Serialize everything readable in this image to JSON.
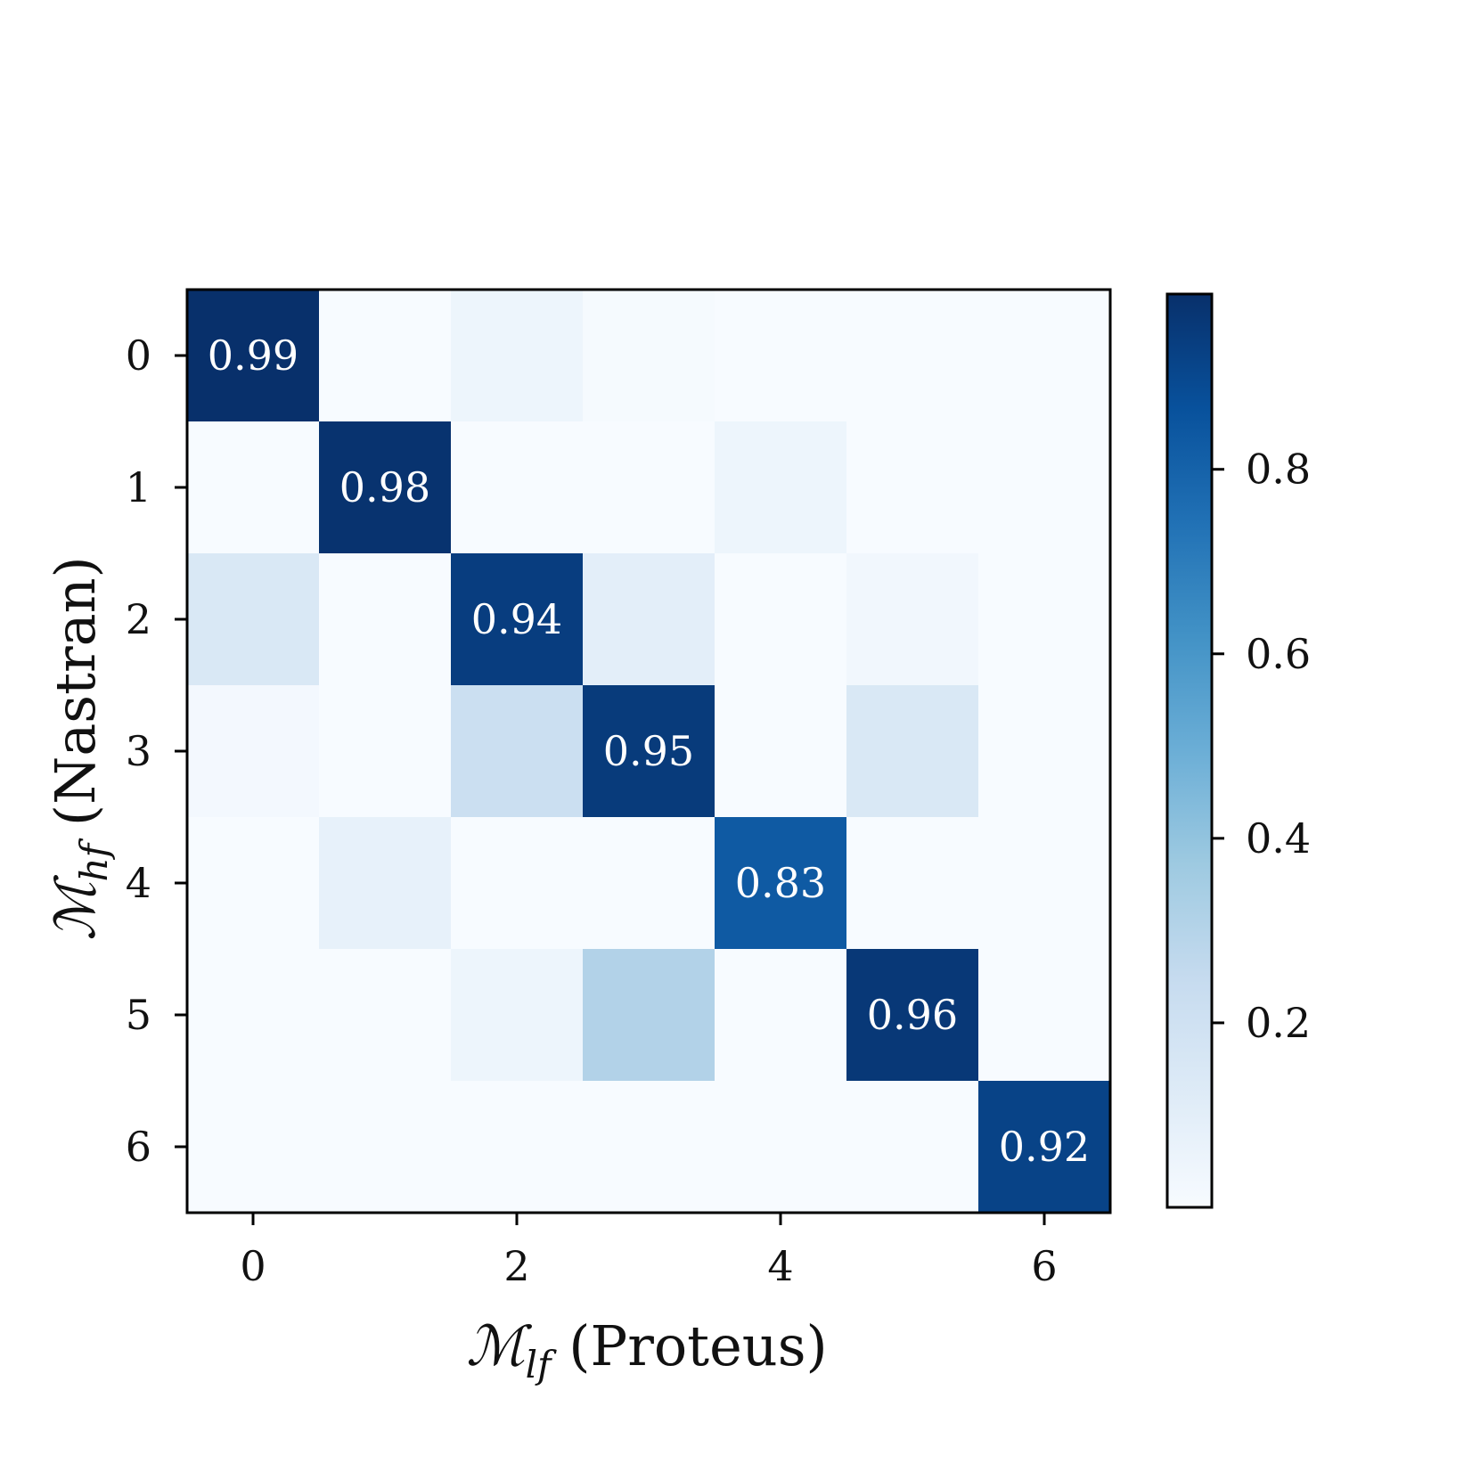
{
  "chart_data": {
    "type": "heatmap",
    "colormap": "Blues",
    "title": "",
    "xlabel": {
      "math": "ℳ",
      "sub": "lf",
      "text": " (Proteus)"
    },
    "ylabel": {
      "math": "ℳ",
      "sub": "hf",
      "text": " (Nastran)"
    },
    "x_ticks": [
      "0",
      "2",
      "4",
      "6"
    ],
    "y_ticks": [
      "0",
      "1",
      "2",
      "3",
      "4",
      "5",
      "6"
    ],
    "colorbar": {
      "ticks": [
        "0.2",
        "0.4",
        "0.6",
        "0.8"
      ],
      "tick_values": [
        0.2,
        0.4,
        0.6,
        0.8
      ],
      "range": [
        0.0,
        0.99
      ]
    },
    "matrix": [
      [
        0.99,
        0.0,
        0.05,
        0.01,
        0.0,
        0.0,
        0.0
      ],
      [
        0.0,
        0.98,
        0.0,
        0.0,
        0.05,
        0.0,
        0.0
      ],
      [
        0.15,
        0.0,
        0.94,
        0.1,
        0.0,
        0.03,
        0.0
      ],
      [
        0.02,
        0.0,
        0.22,
        0.95,
        0.0,
        0.15,
        0.0
      ],
      [
        0.0,
        0.08,
        0.0,
        0.0,
        0.83,
        0.0,
        0.0
      ],
      [
        0.0,
        0.0,
        0.05,
        0.31,
        0.0,
        0.96,
        0.0
      ],
      [
        0.0,
        0.0,
        0.0,
        0.0,
        0.0,
        0.0,
        0.92
      ]
    ],
    "cell_labels": [
      {
        "row": 0,
        "col": 0,
        "text": "0.99"
      },
      {
        "row": 1,
        "col": 1,
        "text": "0.98"
      },
      {
        "row": 2,
        "col": 2,
        "text": "0.94"
      },
      {
        "row": 3,
        "col": 3,
        "text": "0.95"
      },
      {
        "row": 4,
        "col": 4,
        "text": "0.83"
      },
      {
        "row": 5,
        "col": 5,
        "text": "0.96"
      },
      {
        "row": 6,
        "col": 6,
        "text": "0.92"
      }
    ]
  }
}
